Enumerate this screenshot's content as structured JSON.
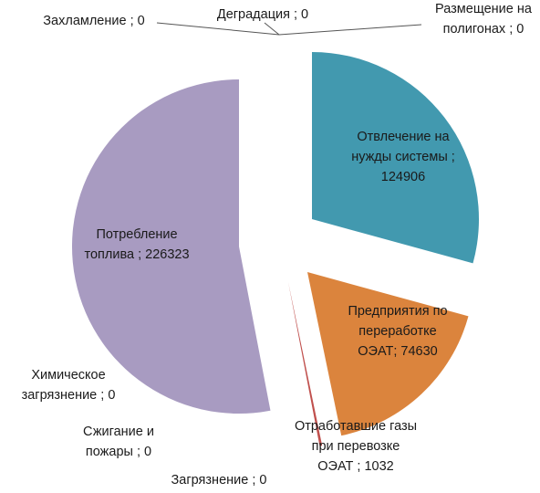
{
  "chart_data": {
    "type": "pie",
    "title": "",
    "series": [
      {
        "label_lines": [
          "Отвлечение на",
          "нужды системы ;",
          "124906"
        ],
        "value": 124906,
        "color": "#4299AF"
      },
      {
        "label_lines": [
          "Предприятия по",
          "переработке",
          "ОЭАТ; 74630"
        ],
        "value": 74630,
        "color": "#DB843D"
      },
      {
        "label_lines": [
          "Отработавшие газы",
          "при перевозке",
          "ОЭАТ ; 1032"
        ],
        "value": 1032,
        "color": "#C0504D"
      },
      {
        "label_lines": [
          "Загрязнение ; 0"
        ],
        "value": 0,
        "color": "#9BBB59"
      },
      {
        "label_lines": [
          "Сжигание и",
          "пожары ; 0"
        ],
        "value": 0,
        "color": "#8064A2"
      },
      {
        "label_lines": [
          "Химическое",
          "загрязнение ; 0"
        ],
        "value": 0,
        "color": "#4BACC6"
      },
      {
        "label_lines": [
          "Потребление",
          "топлива ; 226323"
        ],
        "value": 226323,
        "color": "#A89BC1"
      },
      {
        "label_lines": [
          "Захламление ; 0"
        ],
        "value": 0,
        "color": "#F79646"
      },
      {
        "label_lines": [
          "Деградация ; 0"
        ],
        "value": 0,
        "color": "#4F81BD"
      },
      {
        "label_lines": [
          "Размещение на",
          "полигонах ; 0"
        ],
        "value": 0,
        "color": "#C0504D"
      }
    ],
    "legend": "none",
    "data_labels": "category_and_value",
    "exploded": true
  }
}
